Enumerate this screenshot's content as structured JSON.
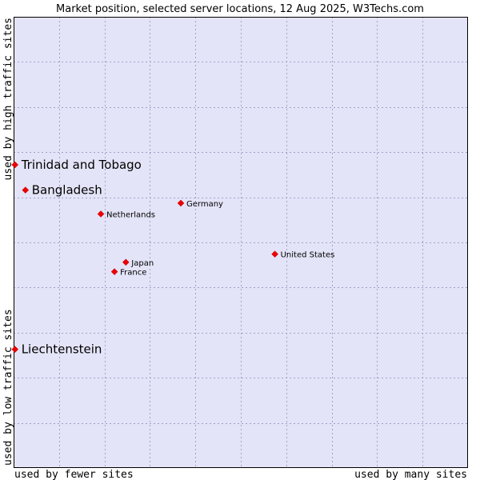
{
  "chart_data": {
    "type": "scatter",
    "title": "Market position, selected server locations, 12 Aug 2025, W3Techs.com",
    "xlabel_left": "used by fewer sites",
    "xlabel_right": "used by many sites",
    "ylabel_bottom": "used by low traffic sites",
    "ylabel_top": "used by high traffic sites",
    "xlim": [
      0,
      100
    ],
    "ylim": [
      0,
      100
    ],
    "grid": true,
    "colors": {
      "plot_background": "#e4e4f8",
      "grid": "#a0a0c8",
      "frame": "#000000",
      "marker": "#ee0000"
    },
    "points": [
      {
        "name": "Trinidad and Tobago",
        "x": 0.3,
        "y": 67.2,
        "label_size": "large"
      },
      {
        "name": "Bangladesh",
        "x": 2.6,
        "y": 61.6,
        "label_size": "large"
      },
      {
        "name": "Germany",
        "x": 36.8,
        "y": 58.7,
        "label_size": "small"
      },
      {
        "name": "Netherlands",
        "x": 19.2,
        "y": 56.3,
        "label_size": "small"
      },
      {
        "name": "United States",
        "x": 57.5,
        "y": 47.4,
        "label_size": "small"
      },
      {
        "name": "Japan",
        "x": 24.7,
        "y": 45.6,
        "label_size": "small"
      },
      {
        "name": "France",
        "x": 22.2,
        "y": 43.5,
        "label_size": "small"
      },
      {
        "name": "Liechtenstein",
        "x": 0.3,
        "y": 26.3,
        "label_size": "large"
      }
    ]
  }
}
